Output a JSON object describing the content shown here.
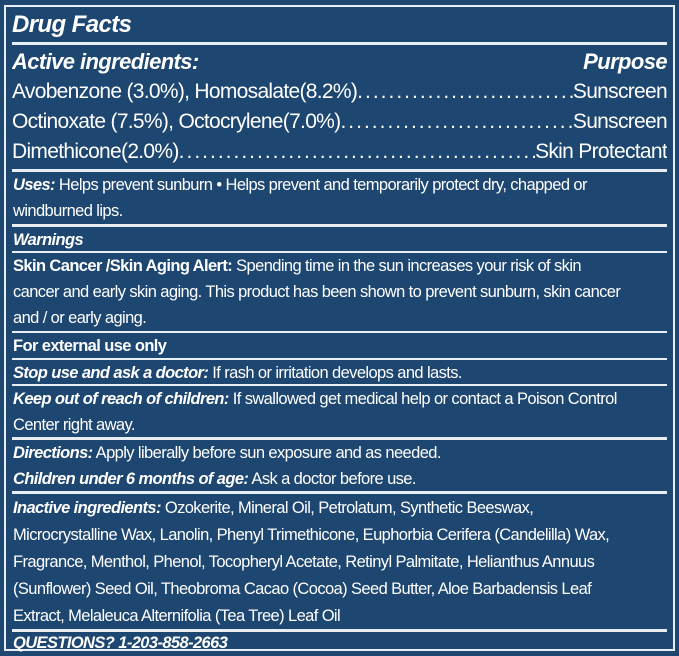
{
  "title": "Drug Facts",
  "active": {
    "heading": "Active ingredients:",
    "purpose_heading": "Purpose",
    "rows": [
      {
        "ingredient": "Avobenzone (3.0%), Homosalate(8.2%)",
        "purpose": "Sunscreen"
      },
      {
        "ingredient": "Octinoxate (7.5%), Octocrylene(7.0%)",
        "purpose": "Sunscreen"
      },
      {
        "ingredient": "Dimethicone(2.0%)",
        "purpose": "Skin Protectant"
      }
    ]
  },
  "uses": {
    "label": "Uses:",
    "lines": [
      " Helps prevent sunburn • Helps prevent and temporarily protect dry, chapped or",
      "windburned lips."
    ]
  },
  "warnings": {
    "heading": "Warnings"
  },
  "skin_cancer": {
    "label": "Skin Cancer /Skin Aging Alert:",
    "lines": [
      " Spending time in the sun increases your risk of skin",
      "cancer and early skin aging. This product has been shown to prevent sunburn, skin cancer",
      "and / or early aging."
    ]
  },
  "external": "For external use only",
  "stop_use": {
    "label": "Stop use and ask a doctor:",
    "text": " If rash or irritation develops and lasts."
  },
  "keep_out": {
    "label": "Keep out of reach of children:",
    "lines": [
      " If swallowed get medical help or contact a Poison Control",
      "Center right away."
    ]
  },
  "directions": {
    "label": "Directions:",
    "text": " Apply liberally before sun exposure and as needed."
  },
  "children": {
    "label": "Children under 6 months of age:",
    "text": " Ask a doctor before use."
  },
  "inactive": {
    "label": "Inactive ingredients:",
    "lines": [
      " Ozokerite, Mineral Oil, Petrolatum, Synthetic Beeswax,",
      "Microcrystalline Wax, Lanolin, Phenyl Trimethicone, Euphorbia Cerifera (Candelilla) Wax,",
      "Fragrance, Menthol, Phenol, Tocopheryl Acetate, Retinyl Palmitate, Helianthus Annuus",
      "(Sunflower) Seed Oil, Theobroma Cacao (Cocoa) Seed Butter, Aloe Barbadensis Leaf",
      "Extract, Melaleuca Alternifolia (Tea Tree) Leaf Oil"
    ]
  },
  "questions": "QUESTIONS? 1-203-858-2663",
  "colors": {
    "background": "#1d4670",
    "text": "#ffffff"
  }
}
